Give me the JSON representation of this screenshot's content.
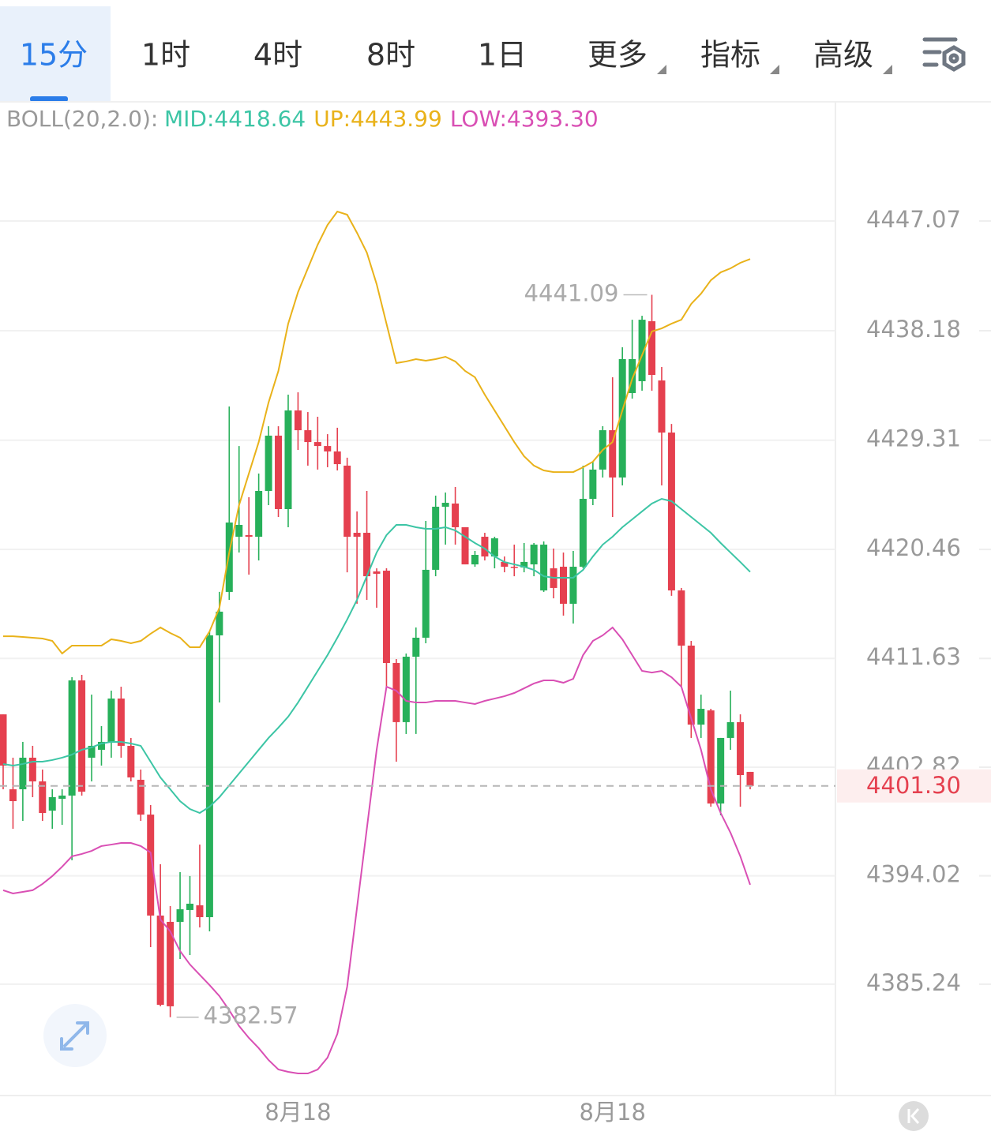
{
  "tabs": [
    {
      "label": "15分",
      "active": true
    },
    {
      "label": "1时"
    },
    {
      "label": "4时"
    },
    {
      "label": "8时"
    },
    {
      "label": "1日"
    },
    {
      "label": "更多",
      "dropdown": true
    },
    {
      "label": "指标",
      "dropdown": true
    },
    {
      "label": "高级",
      "dropdown": true
    }
  ],
  "chart_data": {
    "type": "candlestick",
    "indicator": "BOLL(20,2.0):",
    "categories": [
      null,
      null,
      null,
      null,
      null,
      null,
      null,
      null,
      null,
      null,
      null,
      null,
      null,
      null,
      null,
      null,
      null,
      null,
      null,
      null,
      null,
      null,
      null,
      null,
      null,
      null,
      null,
      null,
      null,
      null,
      "8月18",
      null,
      null,
      null,
      null,
      null,
      null,
      null,
      null,
      null,
      null,
      null,
      null,
      null,
      null,
      null,
      null,
      null,
      null,
      null,
      null,
      null,
      null,
      null,
      null,
      null,
      null,
      null,
      null,
      null,
      null,
      null,
      "8月18",
      null,
      null,
      null,
      null,
      null,
      null,
      null,
      null,
      null,
      null,
      null,
      null,
      null,
      null
    ],
    "open": [
      4407.1,
      4401.03,
      4401.03,
      4403.59,
      4401.67,
      4399.3,
      4400.26,
      4400.52,
      4409.85,
      4403.59,
      4404.23,
      4404.87,
      4408.38,
      4404.55,
      4401.8,
      4398.98,
      4390.8,
      4390.29,
      4390.29,
      4391.25,
      4391.63,
      4390.67,
      4413.5,
      4417.02,
      4421.49,
      4421.62,
      4421.49,
      4425.2,
      4429.68,
      4423.73,
      4431.72,
      4430.12,
      4429.16,
      4428.84,
      4428.4,
      4427.25,
      4421.81,
      4421.81,
      4418.68,
      4418.74,
      4411.26,
      4406.47,
      4411.77,
      4413.31,
      4418.81,
      4423.92,
      4424.18,
      4422.26,
      4419.25,
      4421.49,
      4419.89,
      4419.45,
      4419.06,
      4419.0,
      4419.25,
      4417.14,
      4418.93,
      4419.06,
      4416.06,
      4419.06,
      4424.56,
      4426.93,
      4430.12,
      4426.29,
      4433.13,
      4434.09,
      4438.95,
      4434.15,
      4429.93,
      4417.14,
      4412.67,
      4406.27,
      4407.42,
      4399.88,
      4405.19,
      4406.47,
      4402.44
    ],
    "high": [
      4407.1,
      4403.59,
      4404.87,
      4404.55,
      4402.63,
      4401.03,
      4401.03,
      4410.11,
      4410.3,
      4408.7,
      4406.15,
      4409.02,
      4409.34,
      4405.19,
      4402.63,
      4399.75,
      4394.96,
      4391.57,
      4394.32,
      4394.0,
      4396.55,
      4413.82,
      4417.02,
      4432.04,
      4428.84,
      4424.69,
      4426.61,
      4430.44,
      4430.44,
      4433.0,
      4433.19,
      4431.59,
      4431.21,
      4429.8,
      4430.32,
      4427.89,
      4423.54,
      4425.2,
      4418.93,
      4418.93,
      4411.58,
      4412.03,
      4414.14,
      4422.77,
      4424.82,
      4425.07,
      4425.52,
      4422.26,
      4420.34,
      4421.81,
      4421.49,
      4419.89,
      4420.85,
      4420.98,
      4420.98,
      4421.11,
      4420.53,
      4420.21,
      4420.34,
      4427.25,
      4427.57,
      4430.44,
      4434.41,
      4436.84,
      4439.07,
      4439.39,
      4441.09,
      4435.24,
      4430.63,
      4417.34,
      4413.05,
      4408.7,
      4407.55,
      4405.19,
      4409.02,
      4407.1,
      4402.44
    ],
    "low": [
      4401.03,
      4397.83,
      4398.47,
      4400.39,
      4398.47,
      4397.83,
      4398.15,
      4395.28,
      4400.52,
      4401.67,
      4402.95,
      4403.59,
      4403.59,
      4401.67,
      4398.47,
      4388.24,
      4383.45,
      4382.57,
      4387.28,
      4387.6,
      4389.84,
      4389.52,
      4408.06,
      4416.38,
      4420.21,
      4418.42,
      4419.57,
      4424.05,
      4423.09,
      4422.26,
      4428.52,
      4427.25,
      4426.93,
      4427.12,
      4426.86,
      4418.61,
      4416.06,
      4416.38,
      4415.74,
      4409.34,
      4403.27,
      4405.51,
      4405.51,
      4412.86,
      4418.29,
      4420.85,
      4420.85,
      4419.25,
      4419.06,
      4419.57,
      4418.93,
      4418.61,
      4418.29,
      4418.61,
      4418.29,
      4417.02,
      4416.5,
      4415.1,
      4414.46,
      4418.93,
      4424.05,
      4426.29,
      4423.09,
      4425.65,
      4432.68,
      4433.32,
      4433.32,
      4425.65,
      4416.7,
      4409.34,
      4405.19,
      4405.19,
      4399.62,
      4398.92,
      4404.23,
      4399.62,
      4401.03
    ],
    "close": [
      4402.95,
      4400.07,
      4403.59,
      4401.67,
      4399.11,
      4400.39,
      4400.52,
      4409.85,
      4400.84,
      4404.55,
      4404.87,
      4408.38,
      4404.55,
      4401.99,
      4398.98,
      4390.8,
      4383.57,
      4383.45,
      4391.31,
      4391.76,
      4390.67,
      4413.5,
      4415.42,
      4422.64,
      4422.45,
      4421.49,
      4425.2,
      4429.68,
      4423.73,
      4431.72,
      4430.12,
      4429.16,
      4428.84,
      4428.4,
      4427.37,
      4421.49,
      4421.49,
      4418.29,
      4418.49,
      4411.26,
      4406.47,
      4411.77,
      4413.31,
      4418.81,
      4423.92,
      4424.24,
      4422.26,
      4419.25,
      4420.02,
      4419.89,
      4421.36,
      4419.06,
      4419.0,
      4419.45,
      4420.85,
      4420.85,
      4417.34,
      4416.06,
      4419.06,
      4424.56,
      4426.93,
      4430.12,
      4426.29,
      4435.88,
      4435.88,
      4439.07,
      4434.6,
      4429.93,
      4417.14,
      4412.67,
      4406.27,
      4407.55,
      4399.88,
      4405.19,
      4406.47,
      4402.18,
      4401.3
    ],
    "up_color": "#27b05a",
    "down_color": "#e5404f",
    "series": [
      {
        "name": "MID:4418.64",
        "color": "#3cc5a5",
        "values": [
          4403.08,
          4402.95,
          4403.08,
          4403.27,
          4403.27,
          4403.4,
          4403.59,
          4403.84,
          4404.23,
          4404.42,
          4404.74,
          4404.87,
          4404.87,
          4404.74,
          4404.55,
          4403.27,
          4401.99,
          4401.03,
          4400.07,
          4399.43,
          4399.11,
          4399.62,
          4400.39,
          4401.35,
          4402.31,
          4403.27,
          4404.23,
          4405.19,
          4406.02,
          4406.91,
          4408.06,
          4409.34,
          4410.62,
          4411.9,
          4413.31,
          4414.78,
          4416.38,
          4418.29,
          4420.21,
          4421.62,
          4422.45,
          4422.45,
          4422.26,
          4422.13,
          4422.13,
          4422.26,
          4422.0,
          4421.49,
          4420.98,
          4420.53,
          4419.89,
          4419.44,
          4419.25,
          4419.06,
          4418.8,
          4418.29,
          4418.17,
          4418.17,
          4418.17,
          4418.8,
          4419.89,
          4420.85,
          4421.49,
          4422.26,
          4422.9,
          4423.54,
          4424.18,
          4424.56,
          4424.37,
          4423.73,
          4423.09,
          4422.45,
          4421.81,
          4420.98,
          4420.21,
          4419.44,
          4418.64
        ]
      },
      {
        "name": "UP:4443.99",
        "color": "#e9b21a",
        "values": [
          4413.43,
          4413.43,
          4413.37,
          4413.31,
          4413.24,
          4413.05,
          4412.03,
          4412.67,
          4412.67,
          4412.67,
          4412.67,
          4413.18,
          4413.05,
          4412.86,
          4413.05,
          4413.63,
          4414.14,
          4413.69,
          4413.31,
          4412.54,
          4412.54,
          4413.82,
          4415.74,
          4420.21,
          4424.05,
          4426.61,
          4429.16,
          4432.36,
          4434.92,
          4438.75,
          4441.31,
          4443.23,
          4445.15,
          4446.75,
          4447.83,
          4447.58,
          4446.11,
          4444.51,
          4441.95,
          4438.75,
          4435.56,
          4435.69,
          4435.88,
          4435.75,
          4435.88,
          4436.07,
          4435.69,
          4434.92,
          4434.41,
          4433.0,
          4431.72,
          4430.44,
          4429.16,
          4428.01,
          4427.25,
          4426.86,
          4426.73,
          4426.73,
          4426.73,
          4427.12,
          4427.57,
          4428.52,
          4429.16,
          4431.72,
          4434.28,
          4436.2,
          4438.12,
          4438.37,
          4438.75,
          4439.07,
          4440.35,
          4441.18,
          4442.27,
          4442.91,
          4443.23,
          4443.68,
          4443.99
        ]
      },
      {
        "name": "LOW:4393.30",
        "color": "#d94fb4",
        "values": [
          4392.85,
          4392.59,
          4392.72,
          4392.85,
          4393.36,
          4394.0,
          4394.76,
          4395.6,
          4395.79,
          4396.04,
          4396.43,
          4396.55,
          4396.68,
          4396.68,
          4396.43,
          4395.91,
          4390.48,
          4389.52,
          4387.92,
          4386.84,
          4386.0,
          4385.17,
          4384.28,
          4383.13,
          4381.85,
          4380.89,
          4380.06,
          4379.1,
          4378.33,
          4378.14,
          4378.01,
          4378.01,
          4378.33,
          4379.29,
          4381.21,
          4385.04,
          4391.44,
          4397.83,
          4404.23,
          4409.34,
          4409.02,
          4408.19,
          4408.06,
          4408.06,
          4408.19,
          4408.19,
          4408.19,
          4408.06,
          4407.94,
          4408.19,
          4408.38,
          4408.57,
          4408.83,
          4409.21,
          4409.6,
          4409.85,
          4409.85,
          4409.66,
          4409.98,
          4411.9,
          4413.05,
          4413.5,
          4414.14,
          4413.18,
          4411.9,
          4410.62,
          4410.49,
          4410.62,
          4410.11,
          4409.34,
          4406.78,
          4404.23,
          4401.03,
          4399.11,
          4397.51,
          4395.6,
          4393.3
        ]
      }
    ],
    "ylim": [
      4376.22,
      4456.66
    ],
    "yticks": [
      4447.07,
      4438.18,
      4429.31,
      4420.46,
      4411.63,
      4402.82,
      4394.02,
      4385.24
    ],
    "grid": true,
    "last_price": {
      "value": 4401.3,
      "label": "4401.30"
    },
    "high_label": 4441.09,
    "low_label": 4382.57
  }
}
